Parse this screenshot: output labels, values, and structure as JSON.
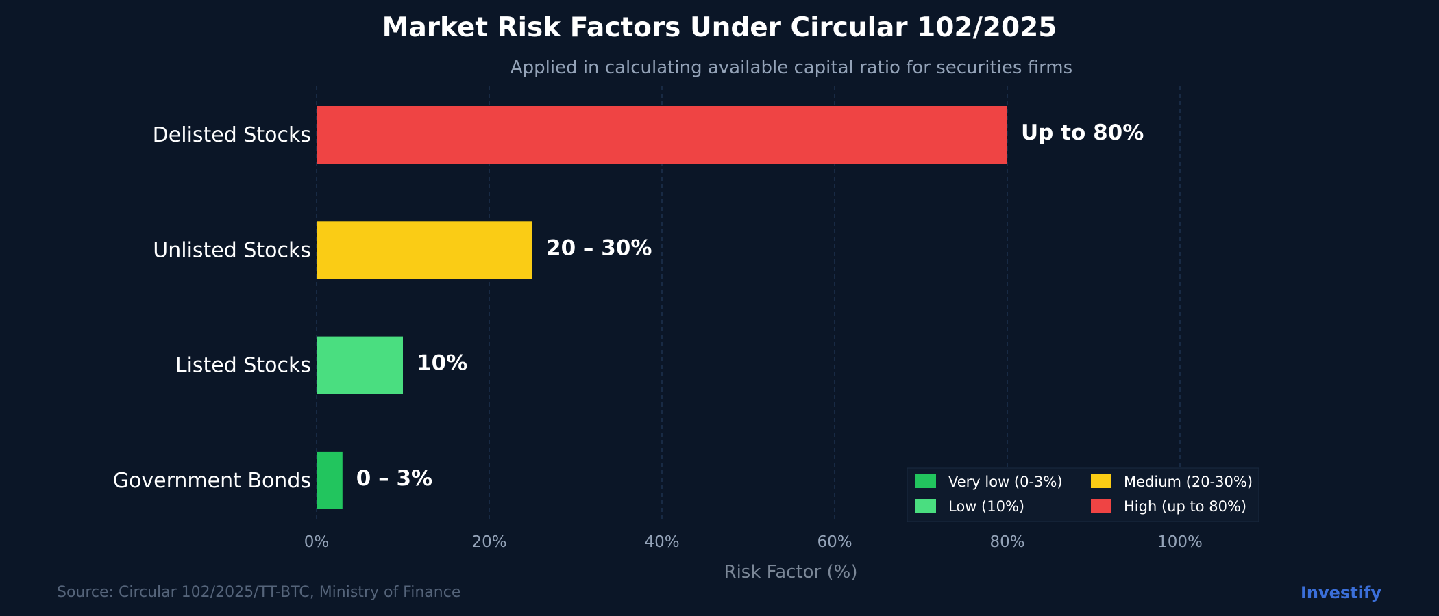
{
  "chart_data": {
    "type": "bar",
    "orientation": "horizontal",
    "title": "Market Risk Factors Under Circular 102/2025",
    "subtitle": "Applied in calculating available capital ratio for securities firms",
    "xlabel": "Risk Factor (%)",
    "ylabel": "",
    "xlim": [
      0,
      110
    ],
    "x_ticks": [
      0,
      20,
      40,
      60,
      80,
      100
    ],
    "x_tick_labels": [
      "0%",
      "20%",
      "40%",
      "60%",
      "80%",
      "100%"
    ],
    "grid": "vertical dashed",
    "categories": [
      "Delisted Stocks",
      "Unlisted Stocks",
      "Listed Stocks",
      "Government Bonds"
    ],
    "values": [
      80,
      25,
      10,
      3
    ],
    "data_labels": [
      "Up to 80%",
      "20 – 30%",
      "10%",
      "0 – 3%"
    ],
    "bar_colors": [
      "#ef4444",
      "#facc15",
      "#4ade80",
      "#22c55e"
    ],
    "legend": {
      "placement": "bottom-right",
      "entries": [
        {
          "label": "Very low (0-3%)",
          "color": "#22c55e"
        },
        {
          "label": "Medium (20-30%)",
          "color": "#facc15"
        },
        {
          "label": "Low (10%)",
          "color": "#4ade80"
        },
        {
          "label": "High (up to 80%)",
          "color": "#ef4444"
        }
      ]
    }
  },
  "footer": {
    "source": "Source: Circular 102/2025/TT-BTC, Ministry of Finance",
    "brand": "Investify"
  },
  "colors": {
    "background": "#0b1627",
    "grid": "#1e3350",
    "title": "#ffffff",
    "subtitle": "#94a3b8",
    "axis_text": "#94a3b8",
    "source": "#55647a",
    "brand": "#3b6fd9"
  }
}
